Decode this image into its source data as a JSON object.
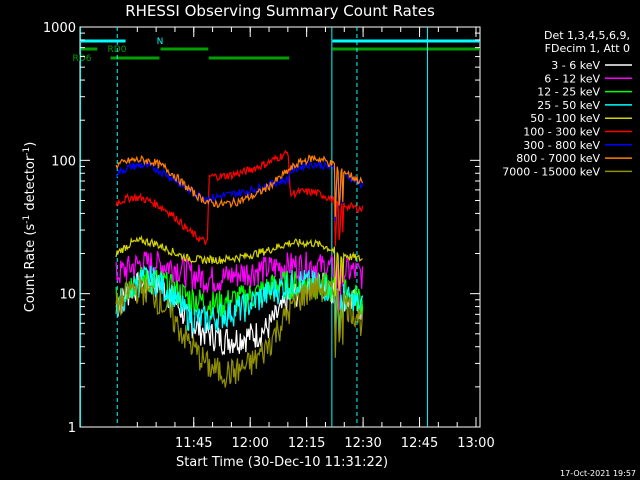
{
  "chart_data": {
    "type": "line",
    "title": "RHESSI Observing Summary Count Rates",
    "xlabel": "Start Time (30-Dec-10 11:31:22)",
    "ylabel_main": "Count Rate (s",
    "ylabel_sup1": "-1",
    "ylabel_mid": " detector",
    "ylabel_sup2": "-1",
    "ylabel_end": ")",
    "yscale": "log",
    "ylim": [
      1,
      1000
    ],
    "xlim_minutes": [
      -16.6,
      89.7
    ],
    "x_ticks": [
      "11:45",
      "12:00",
      "12:15",
      "12:30",
      "12:45",
      "13:00"
    ],
    "y_ticks": [
      "1",
      "10",
      "100",
      "1000"
    ],
    "timestamp": "17-Oct-2021 19:57",
    "legend_header": [
      "Det 1,3,4,5,6,9,",
      "FDecim 1, Att 0"
    ],
    "flags": [
      {
        "label": "N",
        "color": "#00ffff",
        "segments": [
          [
            -16.6,
            -4.5
          ],
          [
            50.5,
            89.7
          ]
        ]
      },
      {
        "label": "RD0",
        "color": "#00a000",
        "segments": [
          [
            -16.6,
            -12.0
          ],
          [
            4.8,
            17.5
          ],
          [
            50.5,
            89.7
          ]
        ]
      },
      {
        "label": "RD6",
        "color": "#00a000",
        "segments": [
          [
            -8.5,
            4.5
          ],
          [
            17.6,
            39.0
          ]
        ]
      }
    ],
    "vlines_solid": [
      -16.6,
      50.2,
      75.6
    ],
    "vlines_dashed": [
      -6.7,
      57.0
    ],
    "series": [
      {
        "name": "3 - 6 keV",
        "color": "#ffffff",
        "x": [
          -7,
          -3,
          0,
          3,
          6,
          9,
          12,
          15,
          18,
          21,
          24,
          27,
          30,
          33,
          36,
          39,
          42,
          45,
          48,
          51,
          53,
          55,
          57,
          58.5
        ],
        "y": [
          8,
          11,
          12,
          12,
          11,
          8.5,
          6.5,
          5.5,
          5,
          4.6,
          4.6,
          4.8,
          5,
          5.5,
          7,
          9,
          11,
          12,
          12,
          11,
          10,
          9,
          8.5,
          7.5
        ]
      },
      {
        "name": "6 - 12 keV",
        "color": "#ff00ff",
        "x": [
          -7,
          -3,
          0,
          3,
          6,
          9,
          12,
          15,
          18,
          21,
          24,
          27,
          30,
          33,
          36,
          39,
          42,
          45,
          48,
          51,
          53,
          55,
          57,
          58.5
        ],
        "y": [
          14,
          16,
          17,
          17,
          16.5,
          16,
          14.5,
          13.5,
          13,
          13.2,
          13.8,
          14.5,
          15,
          15.5,
          16,
          16.5,
          16.5,
          16.5,
          16,
          15.5,
          15,
          15,
          14.5,
          14
        ]
      },
      {
        "name": "12 - 25 keV",
        "color": "#00ff00",
        "x": [
          -7,
          -3,
          0,
          3,
          6,
          9,
          12,
          15,
          18,
          21,
          24,
          27,
          30,
          33,
          36,
          39,
          42,
          45,
          48,
          51,
          53,
          55,
          57,
          58.5
        ],
        "y": [
          9,
          12,
          13,
          13,
          12,
          10.5,
          9.5,
          9,
          8.5,
          8.5,
          9,
          9.5,
          10,
          11,
          12,
          12,
          12,
          12,
          11.5,
          11,
          10.5,
          10,
          9.5,
          9
        ]
      },
      {
        "name": "25 - 50 keV",
        "color": "#00ffff",
        "x": [
          -7,
          -3,
          0,
          3,
          6,
          9,
          12,
          15,
          18,
          21,
          24,
          27,
          30,
          33,
          36,
          39,
          42,
          45,
          48,
          51,
          53,
          55,
          57,
          58.5
        ],
        "y": [
          8,
          11,
          13,
          13,
          11,
          9,
          7,
          6.5,
          6.5,
          7,
          7.5,
          8,
          9,
          10,
          11,
          12,
          12.5,
          12,
          11.5,
          10.5,
          10,
          9,
          8.5,
          8
        ]
      },
      {
        "name": "50 - 100 keV",
        "color": "#d4d400",
        "x": [
          -7,
          -3,
          0,
          3,
          6,
          9,
          12,
          15,
          18,
          21,
          24,
          27,
          30,
          33,
          36,
          39,
          42,
          45,
          48,
          51,
          53,
          55,
          57,
          58.5
        ],
        "y": [
          20,
          24,
          25,
          24,
          22,
          20,
          18.5,
          18,
          18,
          18,
          18.5,
          19,
          20,
          21,
          22.5,
          24,
          24,
          24,
          23,
          21,
          20,
          19,
          18.5,
          18
        ]
      },
      {
        "name": "100 - 300 keV",
        "color": "#ff0000",
        "x": [
          -7,
          -3,
          0,
          3,
          6,
          9,
          12,
          15,
          17.4,
          17.6,
          21,
          24,
          27,
          30,
          33,
          36,
          38.9,
          39.1,
          42,
          45,
          48,
          51,
          53,
          55,
          57,
          58.5
        ],
        "y": [
          48,
          53,
          52,
          48,
          43,
          37,
          30,
          26,
          24,
          76,
          76,
          78,
          82,
          88,
          95,
          105,
          115,
          56,
          58,
          58,
          55,
          50,
          47,
          45,
          44,
          43
        ]
      },
      {
        "name": "300 - 800 keV",
        "color": "#0000ff",
        "x": [
          -7,
          -3,
          0,
          3,
          6,
          9,
          12,
          15,
          17.4,
          17.6,
          21,
          24,
          27,
          30,
          33,
          36,
          38.9,
          39.1,
          42,
          45,
          48,
          51,
          53,
          55,
          57,
          58.5
        ],
        "y": [
          80,
          90,
          92,
          88,
          80,
          70,
          60,
          55,
          52,
          52,
          54,
          56,
          58,
          61,
          65,
          69,
          72,
          82,
          90,
          94,
          92,
          86,
          80,
          75,
          70,
          65
        ]
      },
      {
        "name": "800 - 7000 keV",
        "color": "#ff8000",
        "x": [
          -7,
          -3,
          0,
          3,
          6,
          9,
          12,
          15,
          18,
          21,
          24,
          27,
          30,
          33,
          36,
          39,
          42,
          45,
          48,
          51,
          53,
          55,
          57,
          58.5
        ],
        "y": [
          92,
          100,
          101,
          97,
          88,
          75,
          62,
          53,
          48,
          47,
          48,
          51,
          55,
          62,
          72,
          85,
          97,
          104,
          101,
          92,
          85,
          78,
          72,
          68
        ]
      },
      {
        "name": "7000 - 15000 keV",
        "color": "#909000",
        "x": [
          -7,
          -3,
          0,
          3,
          6,
          9,
          12,
          15,
          18,
          21,
          24,
          27,
          30,
          33,
          36,
          39,
          42,
          45,
          48,
          51,
          53,
          55,
          57,
          58.5
        ],
        "y": [
          8,
          11,
          11,
          10,
          8,
          6,
          4.5,
          3.5,
          2.8,
          2.6,
          2.6,
          2.8,
          3.2,
          4,
          5.5,
          7.5,
          9.5,
          11,
          11,
          10,
          9,
          8,
          7,
          6
        ]
      }
    ]
  }
}
